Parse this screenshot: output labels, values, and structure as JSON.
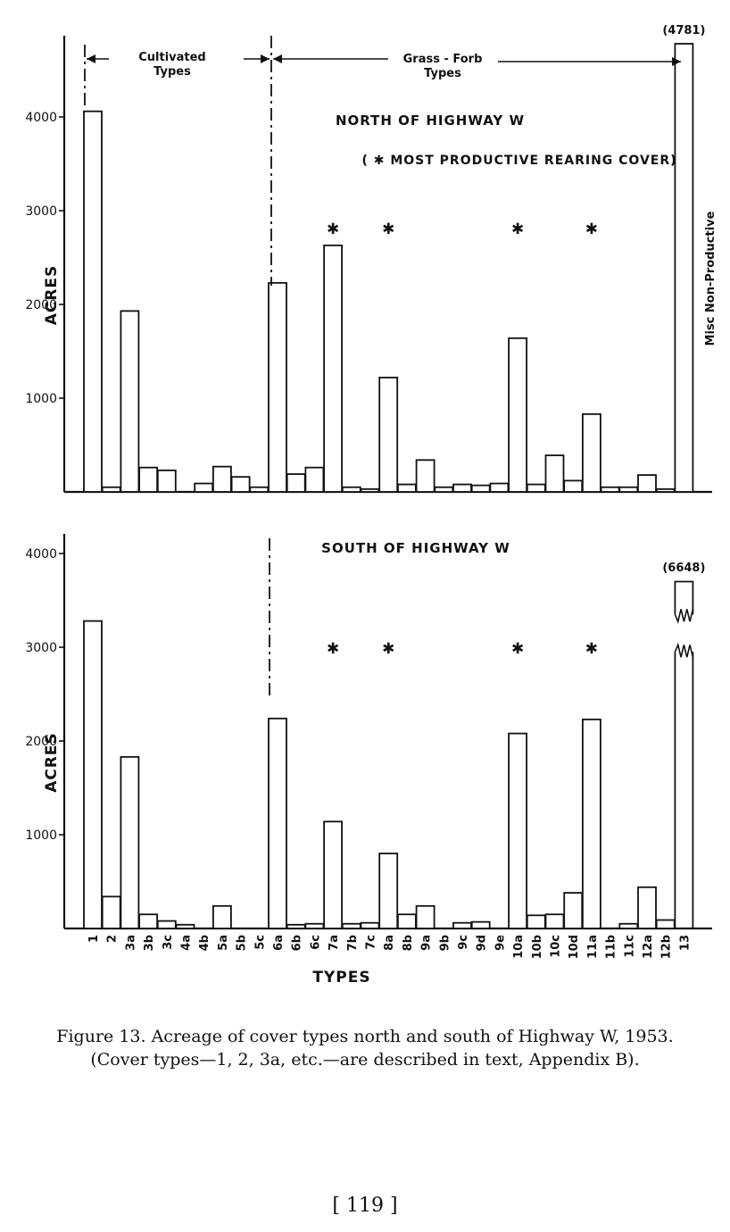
{
  "chart_data": [
    {
      "type": "bar",
      "panel": "north",
      "title": "NORTH OF HIGHWAY W",
      "subtitle": "( ✱ MOST PRODUCTIVE REARING COVER)",
      "xlabel": "",
      "ylabel": "ACRES",
      "ylim": [
        0,
        4781
      ],
      "yticks": [
        1000,
        2000,
        3000,
        4000
      ],
      "ytick_labels": [
        "1000",
        "2000",
        "3000",
        "4000"
      ],
      "grid": false,
      "categories": [
        "1",
        "2",
        "3a",
        "3b",
        "3c",
        "4a",
        "4b",
        "5a",
        "5b",
        "5c",
        "6a",
        "6b",
        "6c",
        "7a",
        "7b",
        "7c",
        "8a",
        "8b",
        "9a",
        "9b",
        "9c",
        "9d",
        "9e",
        "10a",
        "10b",
        "10c",
        "10d",
        "11a",
        "11b",
        "11c",
        "12a",
        "12b",
        "13"
      ],
      "values": [
        4060,
        50,
        1930,
        260,
        230,
        0,
        90,
        270,
        160,
        50,
        2230,
        190,
        260,
        2630,
        50,
        30,
        1220,
        80,
        340,
        50,
        80,
        70,
        90,
        1640,
        80,
        390,
        120,
        830,
        50,
        50,
        180,
        30,
        4781
      ],
      "starred": [
        "7a",
        "8a",
        "10a",
        "11a"
      ],
      "star_glyph": "✱",
      "value_labels": [
        {
          "category": "13",
          "text": "(4781)"
        }
      ],
      "bar_annotation": {
        "category": "13",
        "text": "Misc Non-Productive"
      },
      "group_labels": [
        {
          "text_lines": [
            "Cultivated",
            "Types"
          ]
        },
        {
          "text_lines": [
            "Grass - Forb",
            "Types"
          ]
        }
      ]
    },
    {
      "type": "bar",
      "panel": "south",
      "title": "SOUTH OF HIGHWAY W",
      "xlabel": "TYPES",
      "ylabel": "ACRES",
      "ylim": [
        0,
        4200
      ],
      "yticks": [
        1000,
        2000,
        3000,
        4000
      ],
      "ytick_labels": [
        "1000",
        "2000",
        "3000",
        "4000"
      ],
      "grid": false,
      "axis_break": "bar 13 drawn with broken top",
      "categories": [
        "1",
        "2",
        "3a",
        "3b",
        "3c",
        "4a",
        "4b",
        "5a",
        "5b",
        "5c",
        "6a",
        "6b",
        "6c",
        "7a",
        "7b",
        "7c",
        "8a",
        "8b",
        "9a",
        "9b",
        "9c",
        "9d",
        "9e",
        "10a",
        "10b",
        "10c",
        "10d",
        "11a",
        "11b",
        "11c",
        "12a",
        "12b",
        "13"
      ],
      "tick_labels": [
        "1",
        "2",
        "3a",
        "3b",
        "3c",
        "4a",
        "4b",
        "5a",
        "5b",
        "5c",
        "6a",
        "6b",
        "6c",
        "7a",
        "7b",
        "7c",
        "8a",
        "8b",
        "9a",
        "9b",
        "9c",
        "9d",
        "9e",
        "10a",
        "10b",
        "10c",
        "10d",
        "11a",
        "11b",
        "11c",
        "12a",
        "12b",
        "13"
      ],
      "values": [
        3280,
        340,
        1830,
        150,
        80,
        40,
        0,
        240,
        0,
        0,
        2240,
        40,
        50,
        1140,
        50,
        60,
        800,
        150,
        240,
        0,
        60,
        70,
        0,
        2080,
        140,
        150,
        380,
        2230,
        0,
        50,
        440,
        90,
        6648
      ],
      "starred": [
        "7a",
        "8a",
        "10a",
        "11a"
      ],
      "star_glyph": "✱",
      "value_labels": [
        {
          "category": "13",
          "text": "(6648)"
        }
      ]
    }
  ],
  "caption": {
    "line1": "Figure 13. Acreage of cover types north and south of Highway W, 1953.",
    "line2": "(Cover types—1, 2, 3a, etc.—are described in text, Appendix B)."
  },
  "page_number": "[ 119 ]",
  "colors": {
    "ink": "#111111",
    "bar_fill": "#ffffff",
    "paper": "#ffffff"
  }
}
